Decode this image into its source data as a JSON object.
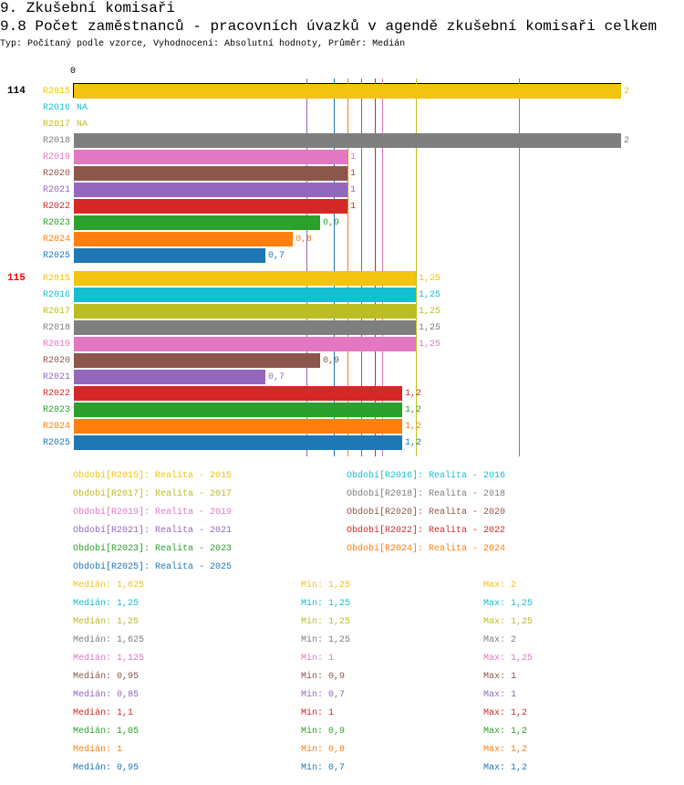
{
  "header": {
    "section": "9. Zkušební komisaři",
    "title": "9.8 Počet zaměstnanců - pracovních úvazků v agendě zkušební komisaři celkem",
    "subtitle": "Typ: Počítaný podle vzorce, Vyhodnocení: Absolutní hodnoty, Průměr: Medián"
  },
  "chart_data": {
    "type": "bar",
    "orientation": "horizontal",
    "axis_zero_label": "0",
    "xlim": [
      0,
      2
    ],
    "series_colors": {
      "R2015": "#f1c40f",
      "R2016": "#17becf",
      "R2017": "#bcbd22",
      "R2018": "#7f7f7f",
      "R2019": "#e377c2",
      "R2020": "#8c564b",
      "R2021": "#9467bd",
      "R2022": "#d62728",
      "R2023": "#2ca02c",
      "R2024": "#ff7f0e",
      "R2025": "#1f77b4"
    },
    "groups": [
      {
        "name": "114",
        "name_color": "#000000",
        "rows": [
          {
            "series": "R2015",
            "value": 2,
            "label": "2"
          },
          {
            "series": "R2016",
            "value": null,
            "label": "NA"
          },
          {
            "series": "R2017",
            "value": null,
            "label": "NA"
          },
          {
            "series": "R2018",
            "value": 2,
            "label": "2"
          },
          {
            "series": "R2019",
            "value": 1,
            "label": "1"
          },
          {
            "series": "R2020",
            "value": 1,
            "label": "1"
          },
          {
            "series": "R2021",
            "value": 1,
            "label": "1"
          },
          {
            "series": "R2022",
            "value": 1,
            "label": "1"
          },
          {
            "series": "R2023",
            "value": 0.9,
            "label": "0,9"
          },
          {
            "series": "R2024",
            "value": 0.8,
            "label": "0,8"
          },
          {
            "series": "R2025",
            "value": 0.7,
            "label": "0,7"
          }
        ]
      },
      {
        "name": "115",
        "name_color": "#ff0000",
        "rows": [
          {
            "series": "R2015",
            "value": 1.25,
            "label": "1,25"
          },
          {
            "series": "R2016",
            "value": 1.25,
            "label": "1,25"
          },
          {
            "series": "R2017",
            "value": 1.25,
            "label": "1,25"
          },
          {
            "series": "R2018",
            "value": 1.25,
            "label": "1,25"
          },
          {
            "series": "R2019",
            "value": 1.25,
            "label": "1,25"
          },
          {
            "series": "R2020",
            "value": 0.9,
            "label": "0,9"
          },
          {
            "series": "R2021",
            "value": 0.7,
            "label": "0,7"
          },
          {
            "series": "R2022",
            "value": 1.2,
            "label": "1,2"
          },
          {
            "series": "R2023",
            "value": 1.2,
            "label": "1,2"
          },
          {
            "series": "R2024",
            "value": 1.2,
            "label": "1,2"
          },
          {
            "series": "R2025",
            "value": 1.2,
            "label": "1,2"
          }
        ]
      }
    ],
    "legend": [
      {
        "series": "R2015",
        "text": "Období[R2015]: Realita - 2015"
      },
      {
        "series": "R2016",
        "text": "Období[R2016]: Realita - 2016"
      },
      {
        "series": "R2017",
        "text": "Období[R2017]: Realita - 2017"
      },
      {
        "series": "R2018",
        "text": "Období[R2018]: Realita - 2018"
      },
      {
        "series": "R2019",
        "text": "Období[R2019]: Realita - 2019"
      },
      {
        "series": "R2020",
        "text": "Období[R2020]: Realita - 2020"
      },
      {
        "series": "R2021",
        "text": "Období[R2021]: Realita - 2021"
      },
      {
        "series": "R2022",
        "text": "Období[R2022]: Realita - 2022"
      },
      {
        "series": "R2023",
        "text": "Období[R2023]: Realita - 2023"
      },
      {
        "series": "R2024",
        "text": "Období[R2024]: Realita - 2024"
      },
      {
        "series": "R2025",
        "text": "Období[R2025]: Realita - 2025"
      }
    ],
    "stats": [
      {
        "series": "R2015",
        "median": 1.625,
        "median_text": "Medián: 1,625",
        "min_text": "Min: 1,25",
        "max_text": "Max: 2"
      },
      {
        "series": "R2016",
        "median": 1.25,
        "median_text": "Medián: 1,25",
        "min_text": "Min: 1,25",
        "max_text": "Max: 1,25"
      },
      {
        "series": "R2017",
        "median": 1.25,
        "median_text": "Medián: 1,25",
        "min_text": "Min: 1,25",
        "max_text": "Max: 1,25"
      },
      {
        "series": "R2018",
        "median": 1.625,
        "median_text": "Medián: 1,625",
        "min_text": "Min: 1,25",
        "max_text": "Max: 2"
      },
      {
        "series": "R2019",
        "median": 1.125,
        "median_text": "Medián: 1,125",
        "min_text": "Min: 1",
        "max_text": "Max: 1,25"
      },
      {
        "series": "R2020",
        "median": 0.95,
        "median_text": "Medián: 0,95",
        "min_text": "Min: 0,9",
        "max_text": "Max: 1"
      },
      {
        "series": "R2021",
        "median": 0.85,
        "median_text": "Medián: 0,85",
        "min_text": "Min: 0,7",
        "max_text": "Max: 1"
      },
      {
        "series": "R2022",
        "median": 1.1,
        "median_text": "Medián: 1,1",
        "min_text": "Min: 1",
        "max_text": "Max: 1,2"
      },
      {
        "series": "R2023",
        "median": 1.05,
        "median_text": "Medián: 1,05",
        "min_text": "Min: 0,9",
        "max_text": "Max: 1,2"
      },
      {
        "series": "R2024",
        "median": 1,
        "median_text": "Medián: 1",
        "min_text": "Min: 0,8",
        "max_text": "Max: 1,2"
      },
      {
        "series": "R2025",
        "median": 0.95,
        "median_text": "Medián: 0,95",
        "min_text": "Min: 0,7",
        "max_text": "Max: 1,2"
      }
    ]
  }
}
